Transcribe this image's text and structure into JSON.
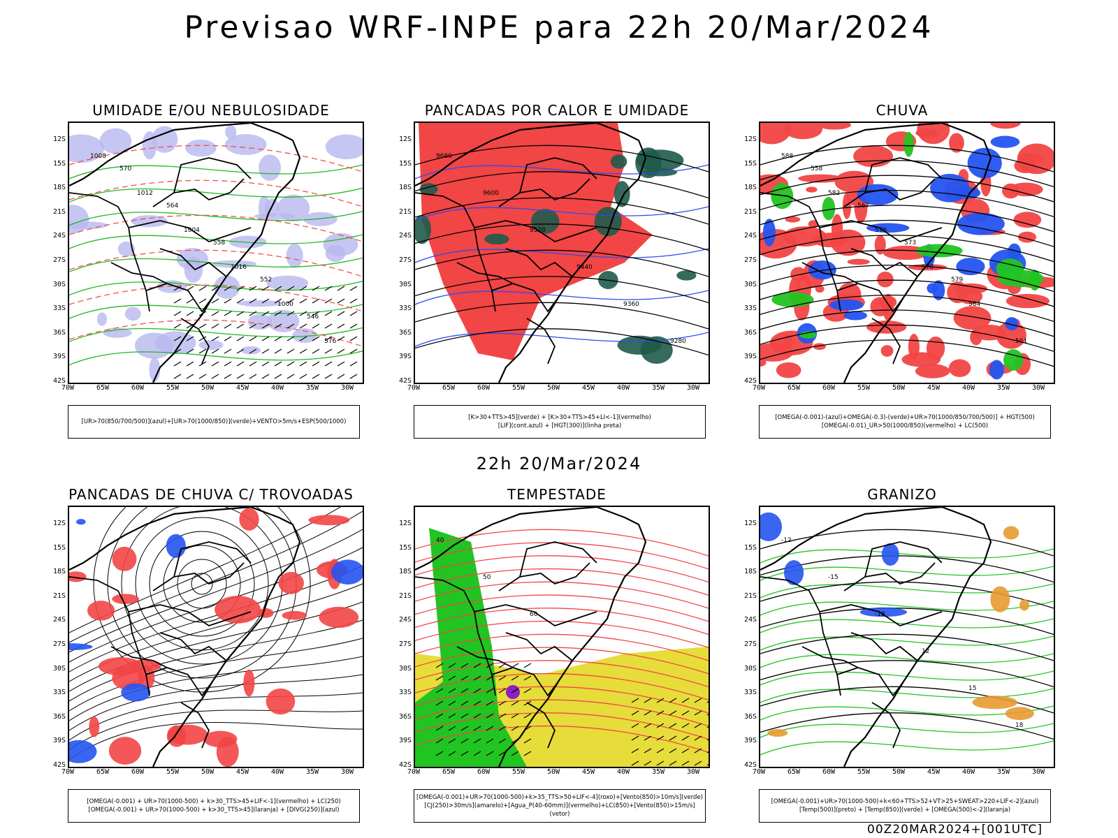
{
  "title": "Previsao WRF-INPE  para 22h 20/Mar/2024",
  "subtitle": "22h 20/Mar/2024",
  "footer": "00Z20MAR2024+[001UTC]",
  "lat_labels": [
    "12S",
    "15S",
    "18S",
    "21S",
    "24S",
    "27S",
    "30S",
    "33S",
    "36S",
    "39S",
    "42S"
  ],
  "lon_labels": [
    "70W",
    "65W",
    "60W",
    "55W",
    "50W",
    "45W",
    "40W",
    "35W",
    "30W"
  ],
  "panels": [
    {
      "title": "UMIDADE E/OU NEBULOSIDADE",
      "legend": [
        "[UR>70(850/700/500)](azul)+[UR>70(1000/850)](verde)+VENTO>5m/s+ESP(500/1000)"
      ],
      "contour_labels": [
        "1008",
        "1012",
        "1004",
        "1016",
        "1000",
        "576",
        "570",
        "564",
        "558",
        "552",
        "546"
      ],
      "colors": {
        "fill": "#b8b8f0",
        "contour": "#1fb81f",
        "dashed": "#f24c4c"
      }
    },
    {
      "title": "PANCADAS POR CALOR E UMIDADE",
      "legend": [
        "[K>30+TTS>45](verde) + [K>30+TTS>45+LI<-1](vermelho)",
        "[LIF](cont.azul) + [HGT(300)](linha preta)"
      ],
      "contour_labels": [
        "9680",
        "9600",
        "9520",
        "9440",
        "9360",
        "9280"
      ],
      "colors": {
        "fill": "#f24545",
        "fill2": "#1f5a4a",
        "contour": "#2b4bf0"
      }
    },
    {
      "title": "CHUVA",
      "legend": [
        "[OMEGA(-0.001)-(azul)+OMEGA(-0.3)-(verde)+UR>70(1000/850/700/500)] + HGT(500)",
        "[OMEGA(-0.01)_UR>50(1000/850)(vermelho) + LC(500)"
      ],
      "contour_labels": [
        "588",
        "582",
        "576",
        "570",
        "564",
        "561",
        "558",
        "567",
        "573",
        "579"
      ],
      "colors": {
        "fill": "#f24545",
        "fill2": "#2454f0",
        "fill3": "#22c422"
      }
    },
    {
      "title": "PANCADAS DE CHUVA C/ TROVOADAS",
      "legend": [
        "[OMEGA(-0.001) + UR>70(1000-500) + k>30_TTS>45+LIF<-1](vermelho) + LC(250)",
        "[OMEGA(-0.001) + UR>70(1000-500) + k>30_TTS>45](laranja) + [DIVG(250)](azul)"
      ],
      "contour_labels": [],
      "colors": {
        "fill": "#f24545",
        "fill2": "#2454f0"
      }
    },
    {
      "title": "TEMPESTADE",
      "legend": [
        "[OMEGA(-0.001)+UR>70(1000-500)+k>35_TTS>50+LIF<-4](roxo)+[Vento(850)>10m/s](verde)",
        "[CJ(250)>30m/s](amarelo)+[Agua_P(40-60mm)](vermelho)+LC(850)+[Vento(850)>15m/s](vetor)"
      ],
      "contour_labels": [
        "40",
        "50",
        "60"
      ],
      "colors": {
        "fill": "#e6dc3a",
        "fill2": "#22c422",
        "contour": "#f24545",
        "purple": "#8a1fc4"
      }
    },
    {
      "title": "GRANIZO",
      "legend": [
        "[OMEGA(-0.001)+UR>70(1000-500)+k<60+TTS>52+VT>25+SWEAT>220+LIF<-2](azul)",
        "[Temp(500)](preto) + [Temp(850)](verde) + [OMEGA(500)<-2](laranja)"
      ],
      "contour_labels": [
        "-12",
        "-15",
        "-18",
        "12",
        "15",
        "18"
      ],
      "colors": {
        "contour": "#22c422",
        "fill2": "#2454f0",
        "orange": "#e89a30"
      }
    }
  ]
}
